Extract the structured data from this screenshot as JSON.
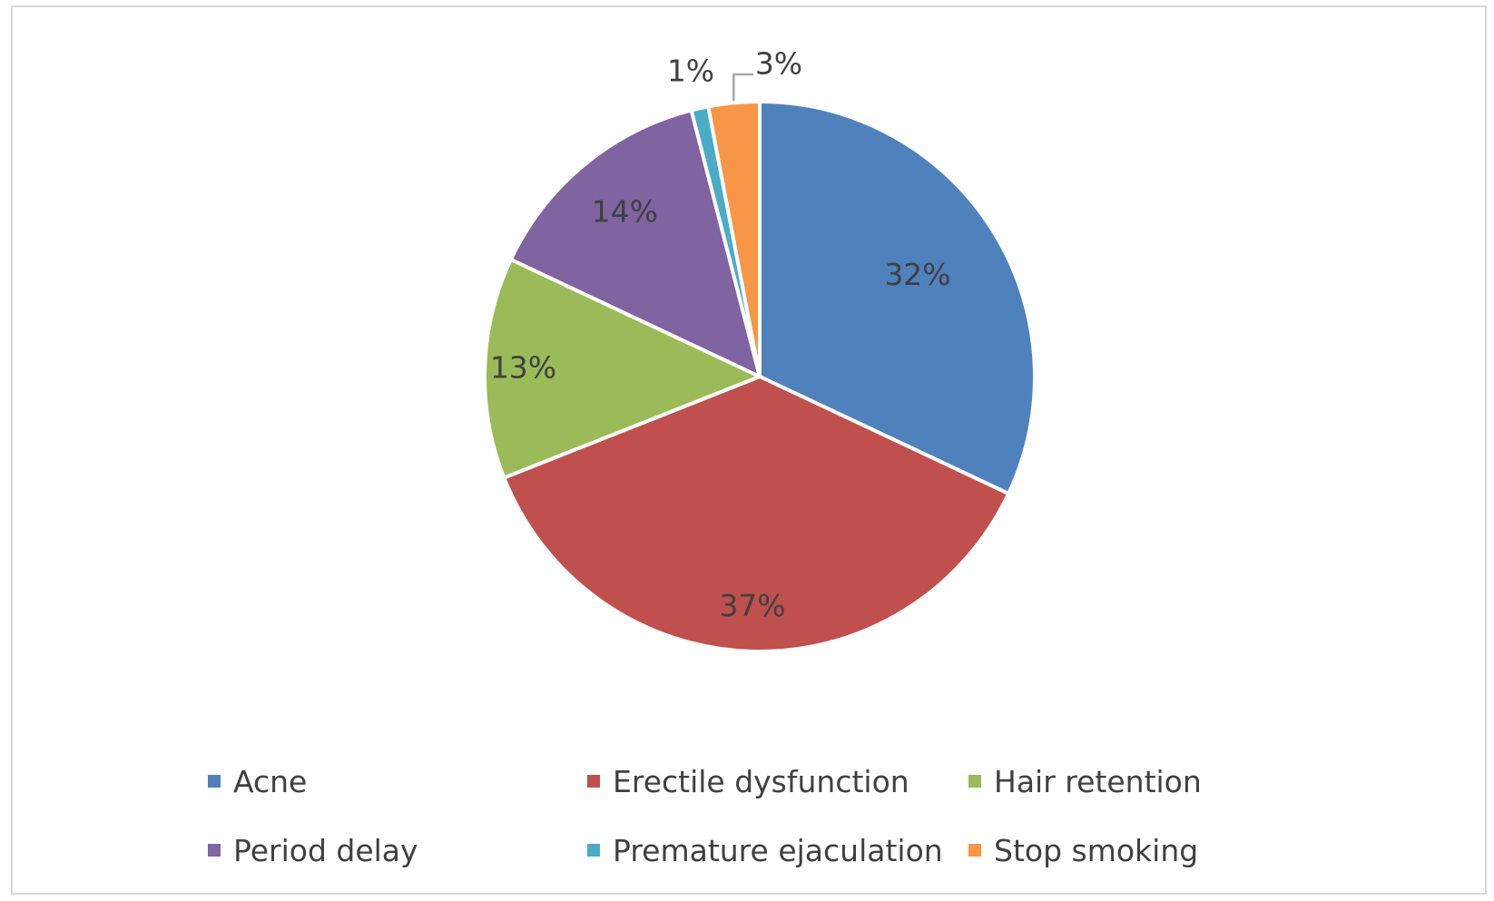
{
  "chart_data": {
    "type": "pie",
    "title": "",
    "categories": [
      "Acne",
      "Erectile dysfunction",
      "Hair retention",
      "Period delay",
      "Premature ejaculation",
      "Stop smoking"
    ],
    "values": [
      32,
      37,
      13,
      14,
      1,
      3
    ],
    "data_labels": [
      "32%",
      "37%",
      "13%",
      "14%",
      "1%",
      "3%"
    ],
    "colors": [
      "#4f81bd",
      "#c0504d",
      "#9bbb59",
      "#8064a2",
      "#4bacc6",
      "#f79646"
    ],
    "legend_position": "bottom",
    "legend": [
      {
        "label": "Acne",
        "color": "#4f81bd"
      },
      {
        "label": "Erectile dysfunction",
        "color": "#c0504d"
      },
      {
        "label": "Hair retention",
        "color": "#9bbb59"
      },
      {
        "label": "Period delay",
        "color": "#8064a2"
      },
      {
        "label": "Premature ejaculation",
        "color": "#4bacc6"
      },
      {
        "label": "Stop smoking",
        "color": "#f79646"
      }
    ]
  }
}
